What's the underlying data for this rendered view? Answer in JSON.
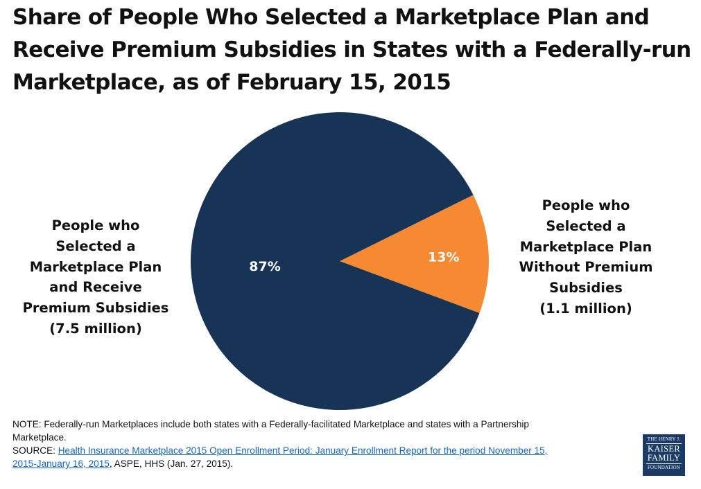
{
  "title": {
    "lines": [
      "Share of People Who Selected a Marketplace Plan and",
      "Receive Premium Subsidies in States with a Federally-run",
      "Marketplace, as of February 15, 2015"
    ]
  },
  "chart_data": {
    "type": "pie",
    "title": "Share of People Who Selected a Marketplace Plan and Receive Premium Subsidies in States with a Federally-run Marketplace, as of February 15, 2015",
    "slices": [
      {
        "label": "People who Selected a Marketplace Plan and Receive Premium Subsidies (7.5 million)",
        "value": 87,
        "value_label": "87%",
        "color": "#173356"
      },
      {
        "label": "People who Selected a Marketplace Plan Without Premium Subsidies (1.1 million)",
        "value": 13,
        "value_label": "13%",
        "color": "#f58a32"
      }
    ]
  },
  "labels": {
    "left": [
      "People who",
      "Selected a",
      "Marketplace Plan",
      "and Receive",
      "Premium Subsidies",
      "(7.5 million)"
    ],
    "right": [
      "People who",
      "Selected a",
      "Marketplace Plan",
      "Without Premium",
      "Subsidies",
      "(1.1 million)"
    ]
  },
  "note": {
    "line1": "NOTE:  Federally-run Marketplaces include both states with a Federally-facilitated Marketplace and states with a Partnership",
    "line2": "Marketplace.",
    "source_prefix": "SOURCE: ",
    "source_link_part1": "Health Insurance Marketplace 2015 Open Enrollment Period:  January Enrollment Report for the period November 15,",
    "source_link_part2": "2015-January 16, 2015",
    "source_suffix": ", ASPE, HHS (Jan. 27, 2015)."
  },
  "logo": {
    "line1": "THE HENRY J.",
    "line2": "KAISER",
    "line3": "FAMILY",
    "line4": "FOUNDATION"
  }
}
